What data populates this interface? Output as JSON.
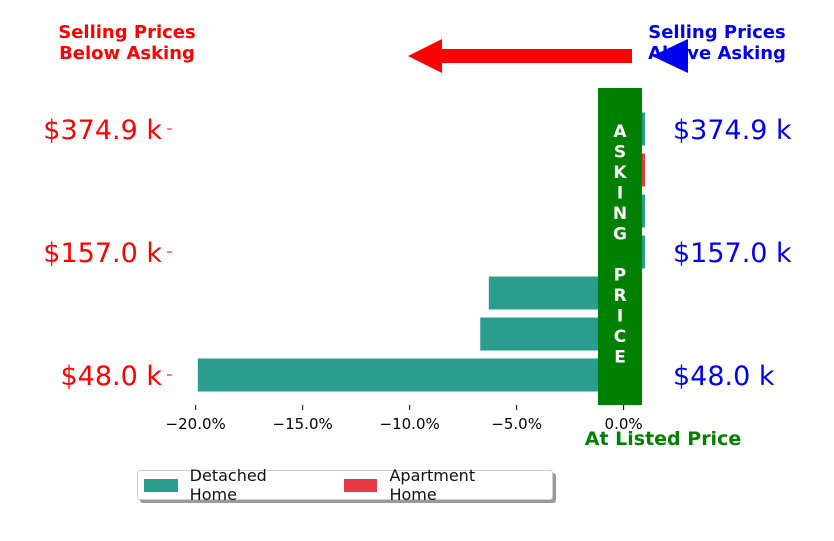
{
  "chart_data": {
    "type": "bar",
    "orientation": "horizontal",
    "top_left_text": [
      "Selling Prices",
      "Below Asking"
    ],
    "top_right_text": [
      "Selling Prices",
      "Above Asking"
    ],
    "bottom_right_text": "At Listed Price",
    "asking_bar_text": "ASKING PRICE",
    "x_ticks": [
      -20,
      -15,
      -10,
      -5,
      0
    ],
    "x_tick_labels": [
      "−20.0%",
      "−15.0%",
      "−10.0%",
      "−5.0%",
      "0.0%"
    ],
    "xlim": [
      -21.2,
      1.0
    ],
    "y_tick_labels_left": [
      "$374.9 k",
      "$157.0 k",
      "$48.0 k"
    ],
    "y_tick_labels_right": [
      "$374.9 k",
      "$157.0 k",
      "$48.0 k"
    ],
    "y_tick_rows": [
      6,
      3,
      0
    ],
    "rows": [
      {
        "value": -19.9,
        "series": "Detached Home"
      },
      {
        "value": -6.7,
        "series": "Detached Home"
      },
      {
        "value": -6.3,
        "series": "Detached Home"
      },
      {
        "value": 1.0,
        "series": "Detached Home"
      },
      {
        "value": 1.0,
        "series": "Detached Home"
      },
      {
        "value": 1.0,
        "series": "Apartment Home"
      },
      {
        "value": 1.0,
        "series": "Detached Home"
      }
    ],
    "legend": [
      {
        "name": "Detached Home",
        "color": "#2a9d8f"
      },
      {
        "name": "Apartment Home",
        "color": "#e63946"
      }
    ],
    "colors": {
      "below": "#ff0000",
      "above": "#0000ee",
      "asking": "#008000",
      "asking_text": "#ffffff"
    },
    "legend_placement": "bottom-left",
    "grid": false
  }
}
